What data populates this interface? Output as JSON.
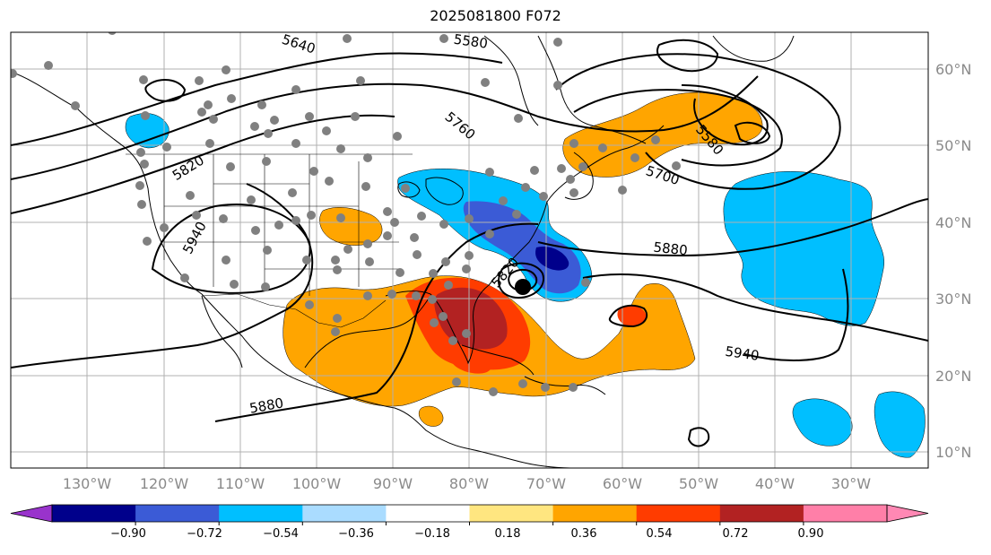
{
  "title": "2025081800 F072",
  "map": {
    "lat_labels": [
      {
        "text": "60°N",
        "lat": 60
      },
      {
        "text": "50°N",
        "lat": 50
      },
      {
        "text": "40°N",
        "lat": 40
      },
      {
        "text": "30°N",
        "lat": 30
      },
      {
        "text": "20°N",
        "lat": 20
      },
      {
        "text": "10°N",
        "lat": 10
      }
    ],
    "lon_labels": [
      {
        "text": "130°W",
        "lon": -130
      },
      {
        "text": "120°W",
        "lon": -120
      },
      {
        "text": "110°W",
        "lon": -110
      },
      {
        "text": "100°W",
        "lon": -100
      },
      {
        "text": "90°W",
        "lon": -90
      },
      {
        "text": "80°W",
        "lon": -80
      },
      {
        "text": "70°W",
        "lon": -70
      },
      {
        "text": "60°W",
        "lon": -60
      },
      {
        "text": "50°W",
        "lon": -50
      },
      {
        "text": "40°W",
        "lon": -40
      },
      {
        "text": "30°W",
        "lon": -30
      }
    ],
    "contour_labels": [
      "5640",
      "5580",
      "5760",
      "5820",
      "5580",
      "5700",
      "5940",
      "5880",
      "5820",
      "5940",
      "5880"
    ],
    "colorbar": {
      "ticks": [
        "−0.90",
        "−0.72",
        "−0.54",
        "−0.36",
        "−0.18",
        "0.18",
        "0.36",
        "0.54",
        "0.72",
        "0.90"
      ],
      "colors": [
        "#9933cc",
        "#00008b",
        "#3b5bd6",
        "#00bfff",
        "#aadcff",
        "#ffffff",
        "#ffe680",
        "#ffa500",
        "#ff3c00",
        "#b22222",
        "#ff7fa8",
        "#ff88b4"
      ]
    },
    "storm_symbol": "hurricane-center"
  }
}
